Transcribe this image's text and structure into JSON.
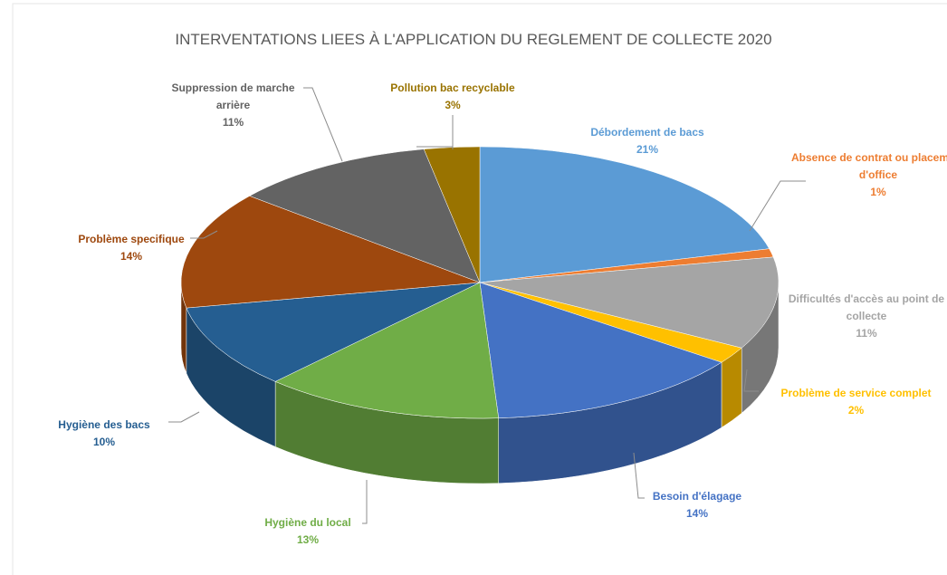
{
  "chart_data": {
    "type": "pie",
    "title": "INTERVENTATIONS LIEES À L'APPLICATION DU REGLEMENT DE COLLECTE 2020",
    "categories": [
      "Débordement de bacs",
      "Absence de contrat ou placement d'office",
      "Difficultés d'accès au point de collecte",
      "Problème de service complet",
      "Besoin d'élagage",
      "Hygiène du local",
      "Hygiène des bacs",
      "Problème specifique",
      "Suppression de marche arrière",
      "Pollution bac recyclable"
    ],
    "values": [
      21,
      1,
      11,
      2,
      14,
      13,
      10,
      14,
      11,
      3
    ],
    "value_labels": [
      "21%",
      "1%",
      "11%",
      "2%",
      "14%",
      "13%",
      "10%",
      "14%",
      "11%",
      "3%"
    ],
    "colors": [
      "#5b9bd5",
      "#ed7d31",
      "#a5a5a5",
      "#ffc000",
      "#4472c4",
      "#70ad47",
      "#255e91",
      "#9e480e",
      "#636363",
      "#997300"
    ]
  }
}
